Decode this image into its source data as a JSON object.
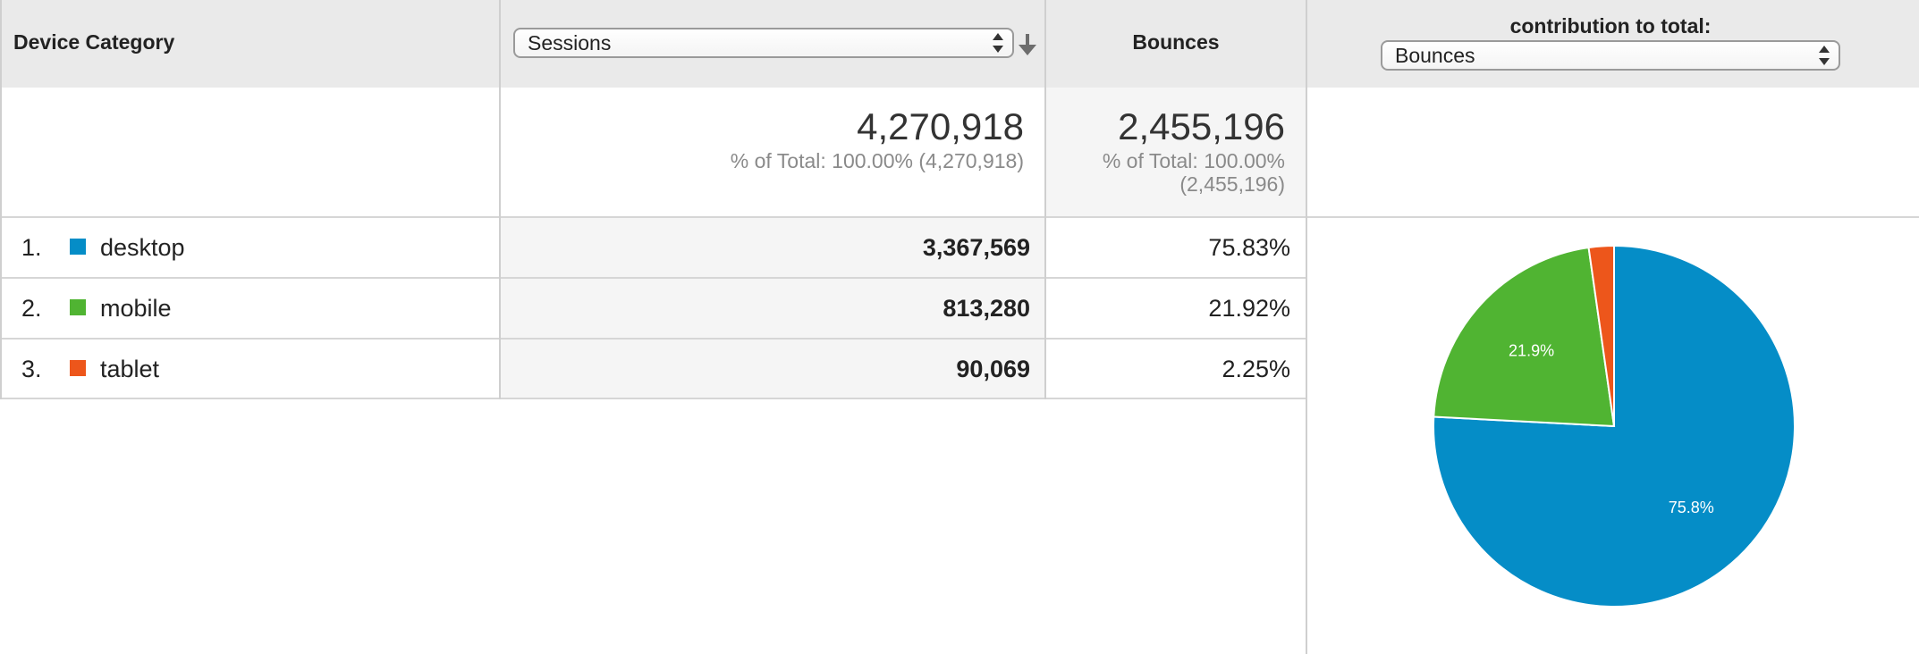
{
  "header": {
    "device_category": "Device Category",
    "sessions_select": "Sessions",
    "bounces": "Bounces",
    "contribution_label": "contribution to total:",
    "contribution_select": "Bounces"
  },
  "totals": {
    "sessions_value": "4,270,918",
    "sessions_pct": "% of Total: 100.00% (4,270,918)",
    "bounces_value": "2,455,196",
    "bounces_pct_line1": "% of Total: 100.00%",
    "bounces_pct_line2": "(2,455,196)"
  },
  "rows": [
    {
      "index": "1.",
      "label": "desktop",
      "color": "#058dc7",
      "sessions": "3,367,569",
      "bounces": "75.83%"
    },
    {
      "index": "2.",
      "label": "mobile",
      "color": "#50b432",
      "sessions": "813,280",
      "bounces": "21.92%"
    },
    {
      "index": "3.",
      "label": "tablet",
      "color": "#ed561b",
      "sessions": "90,069",
      "bounces": "2.25%"
    }
  ],
  "chart_data": {
    "type": "pie",
    "categories": [
      "desktop",
      "mobile",
      "tablet"
    ],
    "values": [
      75.83,
      21.92,
      2.25
    ],
    "colors": [
      "#058dc7",
      "#50b432",
      "#ed561b"
    ],
    "data_labels": [
      "75.8%",
      "21.9%",
      ""
    ]
  }
}
